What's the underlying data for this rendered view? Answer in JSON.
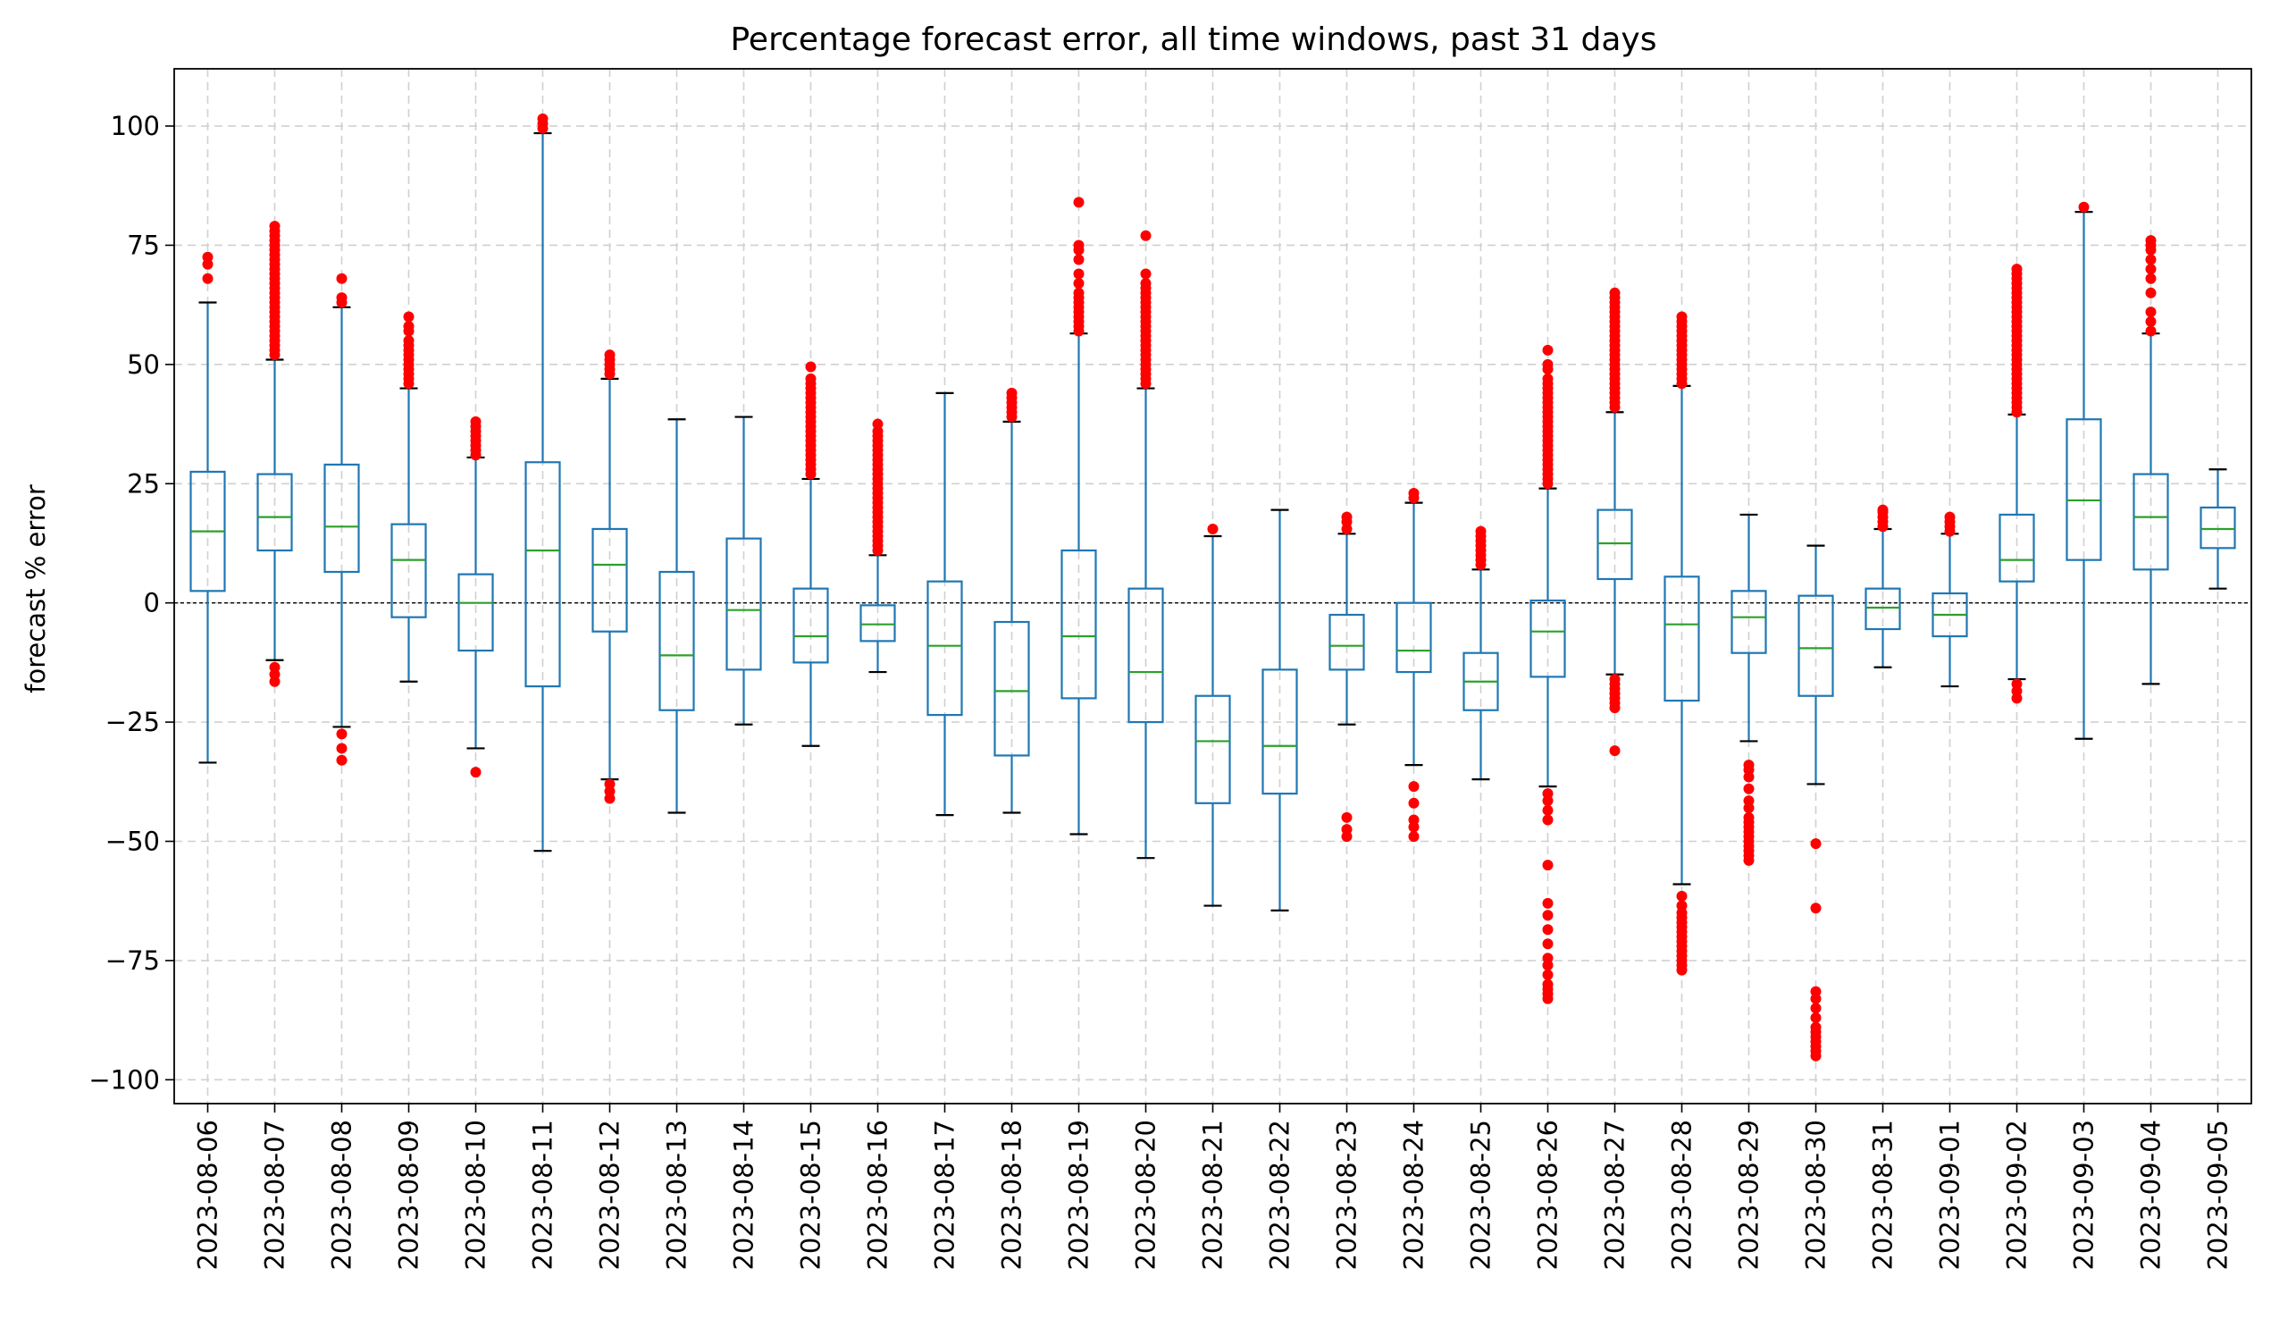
{
  "chart_data": {
    "type": "boxplot",
    "title": "Percentage forecast error, all time windows, past 31 days",
    "xlabel": "",
    "ylabel": "forecast % error",
    "ylim": [
      -105,
      112
    ],
    "yticks": [
      -100,
      -75,
      -50,
      -25,
      0,
      25,
      50,
      75,
      100
    ],
    "ytick_labels": [
      "−100",
      "−75",
      "−50",
      "−25",
      "0",
      "25",
      "50",
      "75",
      "100"
    ],
    "grid": true,
    "zero_line": true,
    "colors": {
      "box": "#1f77b4",
      "median": "#2ca02c",
      "outlier": "#ff0000",
      "grid": "#d0d0d0",
      "zero_line": "#000000"
    },
    "categories": [
      "2023-08-06",
      "2023-08-07",
      "2023-08-08",
      "2023-08-09",
      "2023-08-10",
      "2023-08-11",
      "2023-08-12",
      "2023-08-13",
      "2023-08-14",
      "2023-08-15",
      "2023-08-16",
      "2023-08-17",
      "2023-08-18",
      "2023-08-19",
      "2023-08-20",
      "2023-08-21",
      "2023-08-22",
      "2023-08-23",
      "2023-08-24",
      "2023-08-25",
      "2023-08-26",
      "2023-08-27",
      "2023-08-28",
      "2023-08-29",
      "2023-08-30",
      "2023-08-31",
      "2023-09-01",
      "2023-09-02",
      "2023-09-03",
      "2023-09-04",
      "2023-09-05"
    ],
    "boxes": [
      {
        "whislo": -33.5,
        "q1": 2.5,
        "med": 15,
        "q3": 27.5,
        "whishi": 63,
        "fliers": [
          68,
          71,
          72.5
        ]
      },
      {
        "whislo": -12,
        "q1": 11,
        "med": 18,
        "q3": 27,
        "whishi": 51,
        "fliers": [
          -16.5,
          -15,
          -13.5,
          52,
          53,
          54,
          55,
          56,
          57,
          58,
          59,
          60,
          61,
          62,
          63,
          64,
          65,
          66,
          67,
          68,
          69,
          70,
          71,
          72,
          73,
          74,
          75,
          76,
          77,
          78,
          79
        ]
      },
      {
        "whislo": -26,
        "q1": 6.5,
        "med": 16,
        "q3": 29,
        "whishi": 62,
        "fliers": [
          -33,
          -30.5,
          -27.5,
          63,
          64,
          68
        ]
      },
      {
        "whislo": -16.5,
        "q1": -3,
        "med": 9,
        "q3": 16.5,
        "whishi": 45,
        "fliers": [
          46,
          47,
          48,
          49,
          50,
          51,
          52,
          53,
          54,
          55,
          57,
          58,
          60
        ]
      },
      {
        "whislo": -30.5,
        "q1": -10,
        "med": 0,
        "q3": 6,
        "whishi": 30.5,
        "fliers": [
          -35.5,
          31,
          32,
          33,
          34,
          35,
          36,
          37,
          38
        ]
      },
      {
        "whislo": -52,
        "q1": -17.5,
        "med": 11,
        "q3": 29.5,
        "whishi": 98.5,
        "fliers": [
          99.5,
          100.5,
          101.5
        ]
      },
      {
        "whislo": -37,
        "q1": -6,
        "med": 8,
        "q3": 15.5,
        "whishi": 47,
        "fliers": [
          -41,
          -39.5,
          -38,
          48,
          49,
          50,
          51,
          52
        ]
      },
      {
        "whislo": -44,
        "q1": -22.5,
        "med": -11,
        "q3": 6.5,
        "whishi": 38.5,
        "fliers": []
      },
      {
        "whislo": -25.5,
        "q1": -14,
        "med": -1.5,
        "q3": 13.5,
        "whishi": 39,
        "fliers": []
      },
      {
        "whislo": -30,
        "q1": -12.5,
        "med": -7,
        "q3": 3,
        "whishi": 26,
        "fliers": [
          27,
          28,
          29,
          30,
          31,
          32,
          33,
          34,
          35,
          36,
          37,
          38,
          39,
          40,
          41,
          42,
          43,
          44,
          45,
          46,
          47,
          49.5
        ]
      },
      {
        "whislo": -14.5,
        "q1": -8,
        "med": -4.5,
        "q3": -0.5,
        "whishi": 10,
        "fliers": [
          11,
          12,
          13,
          14,
          15,
          16,
          17,
          18,
          19,
          20,
          21,
          22,
          23,
          24,
          25,
          26,
          27,
          28,
          29,
          30,
          31,
          32,
          33,
          34,
          35,
          36,
          37.5
        ]
      },
      {
        "whislo": -44.5,
        "q1": -23.5,
        "med": -9,
        "q3": 4.5,
        "whishi": 44,
        "fliers": []
      },
      {
        "whislo": -44,
        "q1": -32,
        "med": -18.5,
        "q3": -4,
        "whishi": 38,
        "fliers": [
          39,
          40,
          41,
          42,
          43,
          44
        ]
      },
      {
        "whislo": -48.5,
        "q1": -20,
        "med": -7,
        "q3": 11,
        "whishi": 56.5,
        "fliers": [
          57,
          58,
          59,
          60,
          61,
          62,
          63,
          64,
          65,
          67,
          69,
          72,
          74,
          75,
          84
        ]
      },
      {
        "whislo": -53.5,
        "q1": -25,
        "med": -14.5,
        "q3": 3,
        "whishi": 45,
        "fliers": [
          46,
          47,
          48,
          49,
          50,
          51,
          52,
          53,
          54,
          55,
          56,
          57,
          58,
          59,
          60,
          61,
          62,
          63,
          64,
          65,
          66,
          67,
          69,
          77
        ]
      },
      {
        "whislo": -63.5,
        "q1": -42,
        "med": -29,
        "q3": -19.5,
        "whishi": 14,
        "fliers": [
          15.5
        ]
      },
      {
        "whislo": -64.5,
        "q1": -40,
        "med": -30,
        "q3": -14,
        "whishi": 19.5,
        "fliers": []
      },
      {
        "whislo": -25.5,
        "q1": -14,
        "med": -9,
        "q3": -2.5,
        "whishi": 14.5,
        "fliers": [
          -49,
          -47.5,
          -45,
          15.5,
          17,
          18
        ]
      },
      {
        "whislo": -34,
        "q1": -14.5,
        "med": -10,
        "q3": 0,
        "whishi": 21,
        "fliers": [
          -49,
          -47,
          -45.5,
          -42,
          -38.5,
          22,
          23
        ]
      },
      {
        "whislo": -37,
        "q1": -22.5,
        "med": -16.5,
        "q3": -10.5,
        "whishi": 7,
        "fliers": [
          8,
          9,
          10,
          11,
          12,
          13,
          14,
          15
        ]
      },
      {
        "whislo": -38.5,
        "q1": -15.5,
        "med": -6,
        "q3": 0.5,
        "whishi": 24,
        "fliers": [
          -83,
          -82,
          -81,
          -80,
          -78,
          -76,
          -74.5,
          -71.5,
          -68.5,
          -65.5,
          -63,
          -55,
          -45.5,
          -43.5,
          -41.5,
          -40,
          25,
          26,
          27,
          28,
          29,
          30,
          31,
          32,
          33,
          34,
          35,
          36,
          37,
          38,
          39,
          40,
          41,
          42,
          43,
          44,
          45,
          46,
          47,
          49,
          50,
          53
        ]
      },
      {
        "whislo": -15,
        "q1": 5,
        "med": 12.5,
        "q3": 19.5,
        "whishi": 40,
        "fliers": [
          -31,
          -22,
          -21,
          -20,
          -19,
          -18,
          -17,
          -16,
          41,
          42,
          43,
          44,
          45,
          46,
          47,
          48,
          49,
          50,
          51,
          52,
          53,
          54,
          55,
          56,
          57,
          58,
          59,
          60,
          61,
          62,
          63,
          64,
          65
        ]
      },
      {
        "whislo": -59,
        "q1": -20.5,
        "med": -4.5,
        "q3": 5.5,
        "whishi": 45.5,
        "fliers": [
          -77,
          -76,
          -75,
          -74,
          -73,
          -72,
          -71,
          -70,
          -69,
          -68,
          -67,
          -66,
          -65,
          -63.5,
          -61.5,
          46,
          47,
          48,
          49,
          50,
          51,
          52,
          53,
          54,
          55,
          56,
          57,
          58,
          59,
          60
        ]
      },
      {
        "whislo": -29,
        "q1": -10.5,
        "med": -3,
        "q3": 2.5,
        "whishi": 18.5,
        "fliers": [
          -54,
          -53,
          -52,
          -51,
          -50,
          -49,
          -48,
          -47,
          -46,
          -45,
          -43,
          -41.5,
          -39,
          -36.5,
          -35,
          -34
        ]
      },
      {
        "whislo": -38,
        "q1": -19.5,
        "med": -9.5,
        "q3": 1.5,
        "whishi": 12,
        "fliers": [
          -95,
          -94,
          -93,
          -92,
          -91,
          -90,
          -89,
          -87,
          -85,
          -83,
          -81.5,
          -64,
          -50.5
        ]
      },
      {
        "whislo": -13.5,
        "q1": -5.5,
        "med": -1,
        "q3": 3,
        "whishi": 15.5,
        "fliers": [
          16,
          17,
          18,
          19,
          19.5
        ]
      },
      {
        "whislo": -17.5,
        "q1": -7,
        "med": -2.5,
        "q3": 2,
        "whishi": 14.5,
        "fliers": [
          15,
          16,
          17,
          18
        ]
      },
      {
        "whislo": -16,
        "q1": 4.5,
        "med": 9,
        "q3": 18.5,
        "whishi": 39.5,
        "fliers": [
          -20,
          -18.5,
          -17,
          40,
          41,
          42,
          43,
          44,
          45,
          46,
          47,
          48,
          49,
          50,
          51,
          52,
          53,
          54,
          55,
          56,
          57,
          58,
          59,
          60,
          61,
          62,
          63,
          64,
          65,
          66,
          67,
          68,
          69,
          70
        ]
      },
      {
        "whislo": -28.5,
        "q1": 9,
        "med": 21.5,
        "q3": 38.5,
        "whishi": 82,
        "fliers": [
          83
        ]
      },
      {
        "whislo": -17,
        "q1": 7,
        "med": 18,
        "q3": 27,
        "whishi": 56.5,
        "fliers": [
          57,
          59,
          61,
          65,
          68,
          70,
          72,
          74,
          75,
          76
        ]
      },
      {
        "whislo": 3,
        "q1": 11.5,
        "med": 15.5,
        "q3": 20,
        "whishi": 28,
        "fliers": []
      }
    ]
  }
}
